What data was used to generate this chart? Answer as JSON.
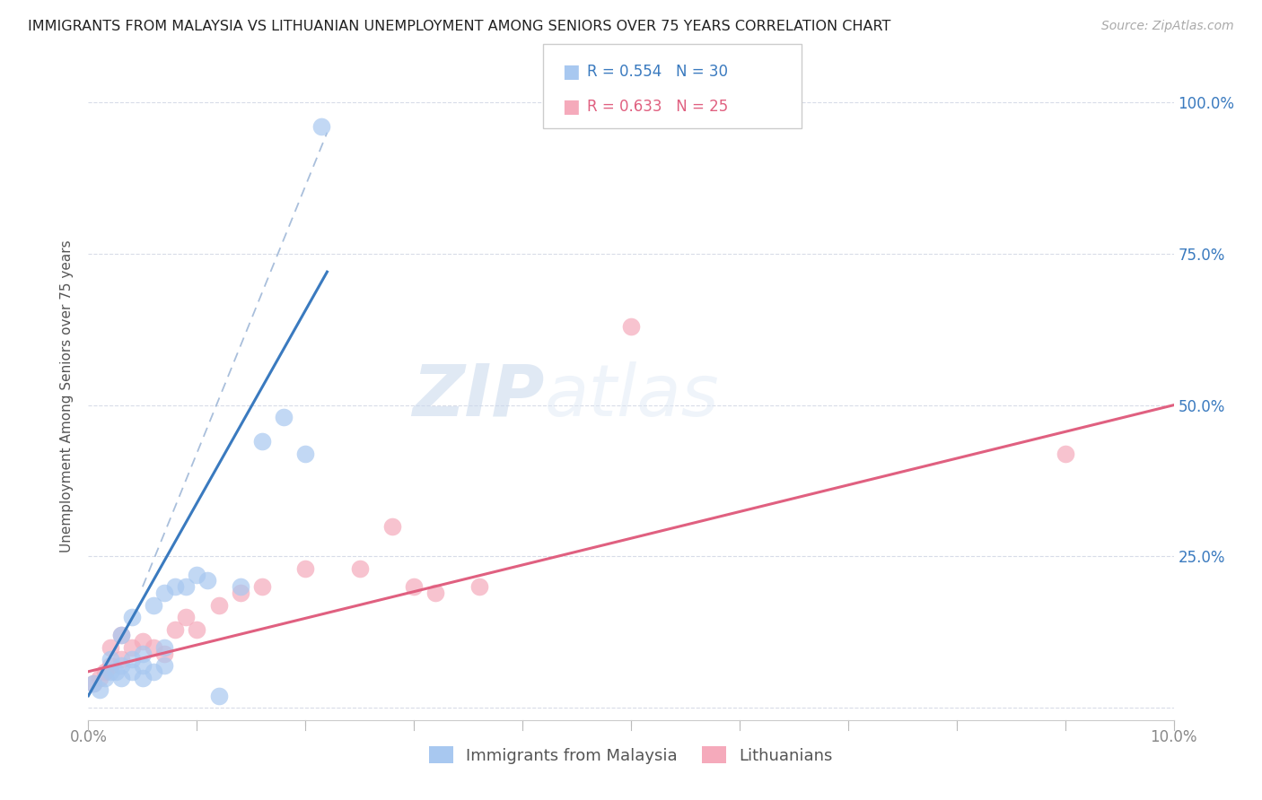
{
  "title": "IMMIGRANTS FROM MALAYSIA VS LITHUANIAN UNEMPLOYMENT AMONG SENIORS OVER 75 YEARS CORRELATION CHART",
  "source": "Source: ZipAtlas.com",
  "ylabel": "Unemployment Among Seniors over 75 years",
  "legend_label1": "Immigrants from Malaysia",
  "legend_label2": "Lithuanians",
  "r1": 0.554,
  "n1": 30,
  "r2": 0.633,
  "n2": 25,
  "color_blue": "#a8c8f0",
  "color_pink": "#f5aabb",
  "color_blue_line": "#3a7abf",
  "color_pink_line": "#e06080",
  "color_dashed": "#a0b8d8",
  "watermark_zip": "ZIP",
  "watermark_atlas": "atlas",
  "xlim": [
    0.0,
    0.1
  ],
  "ylim": [
    -0.02,
    1.05
  ],
  "yticks": [
    0.0,
    0.25,
    0.5,
    0.75,
    1.0
  ],
  "ytick_labels_right": [
    "",
    "25.0%",
    "50.0%",
    "75.0%",
    "100.0%"
  ],
  "blue_scatter_x": [
    0.0005,
    0.001,
    0.0015,
    0.002,
    0.002,
    0.0025,
    0.003,
    0.003,
    0.003,
    0.004,
    0.004,
    0.004,
    0.005,
    0.005,
    0.005,
    0.006,
    0.006,
    0.007,
    0.007,
    0.007,
    0.008,
    0.009,
    0.01,
    0.011,
    0.012,
    0.014,
    0.016,
    0.018,
    0.02,
    0.0215
  ],
  "blue_scatter_y": [
    0.04,
    0.03,
    0.05,
    0.06,
    0.08,
    0.06,
    0.05,
    0.07,
    0.12,
    0.06,
    0.08,
    0.15,
    0.05,
    0.07,
    0.09,
    0.06,
    0.17,
    0.07,
    0.1,
    0.19,
    0.2,
    0.2,
    0.22,
    0.21,
    0.02,
    0.2,
    0.44,
    0.48,
    0.42,
    0.96
  ],
  "pink_scatter_x": [
    0.0005,
    0.001,
    0.0015,
    0.002,
    0.002,
    0.003,
    0.003,
    0.004,
    0.005,
    0.006,
    0.007,
    0.008,
    0.009,
    0.01,
    0.012,
    0.014,
    0.016,
    0.02,
    0.025,
    0.028,
    0.03,
    0.032,
    0.036,
    0.05,
    0.09
  ],
  "pink_scatter_y": [
    0.04,
    0.05,
    0.06,
    0.07,
    0.1,
    0.08,
    0.12,
    0.1,
    0.11,
    0.1,
    0.09,
    0.13,
    0.15,
    0.13,
    0.17,
    0.19,
    0.2,
    0.23,
    0.23,
    0.3,
    0.2,
    0.19,
    0.2,
    0.63,
    0.42
  ],
  "blue_line_x": [
    0.0,
    0.022
  ],
  "blue_line_y": [
    0.02,
    0.72
  ],
  "pink_line_x": [
    0.0,
    0.1
  ],
  "pink_line_y": [
    0.06,
    0.5
  ],
  "dashed_line_x": [
    0.005,
    0.022
  ],
  "dashed_line_y": [
    0.2,
    0.95
  ],
  "grid_color": "#d8dce8",
  "tick_color": "#888888",
  "right_tick_color": "#3a7abf"
}
